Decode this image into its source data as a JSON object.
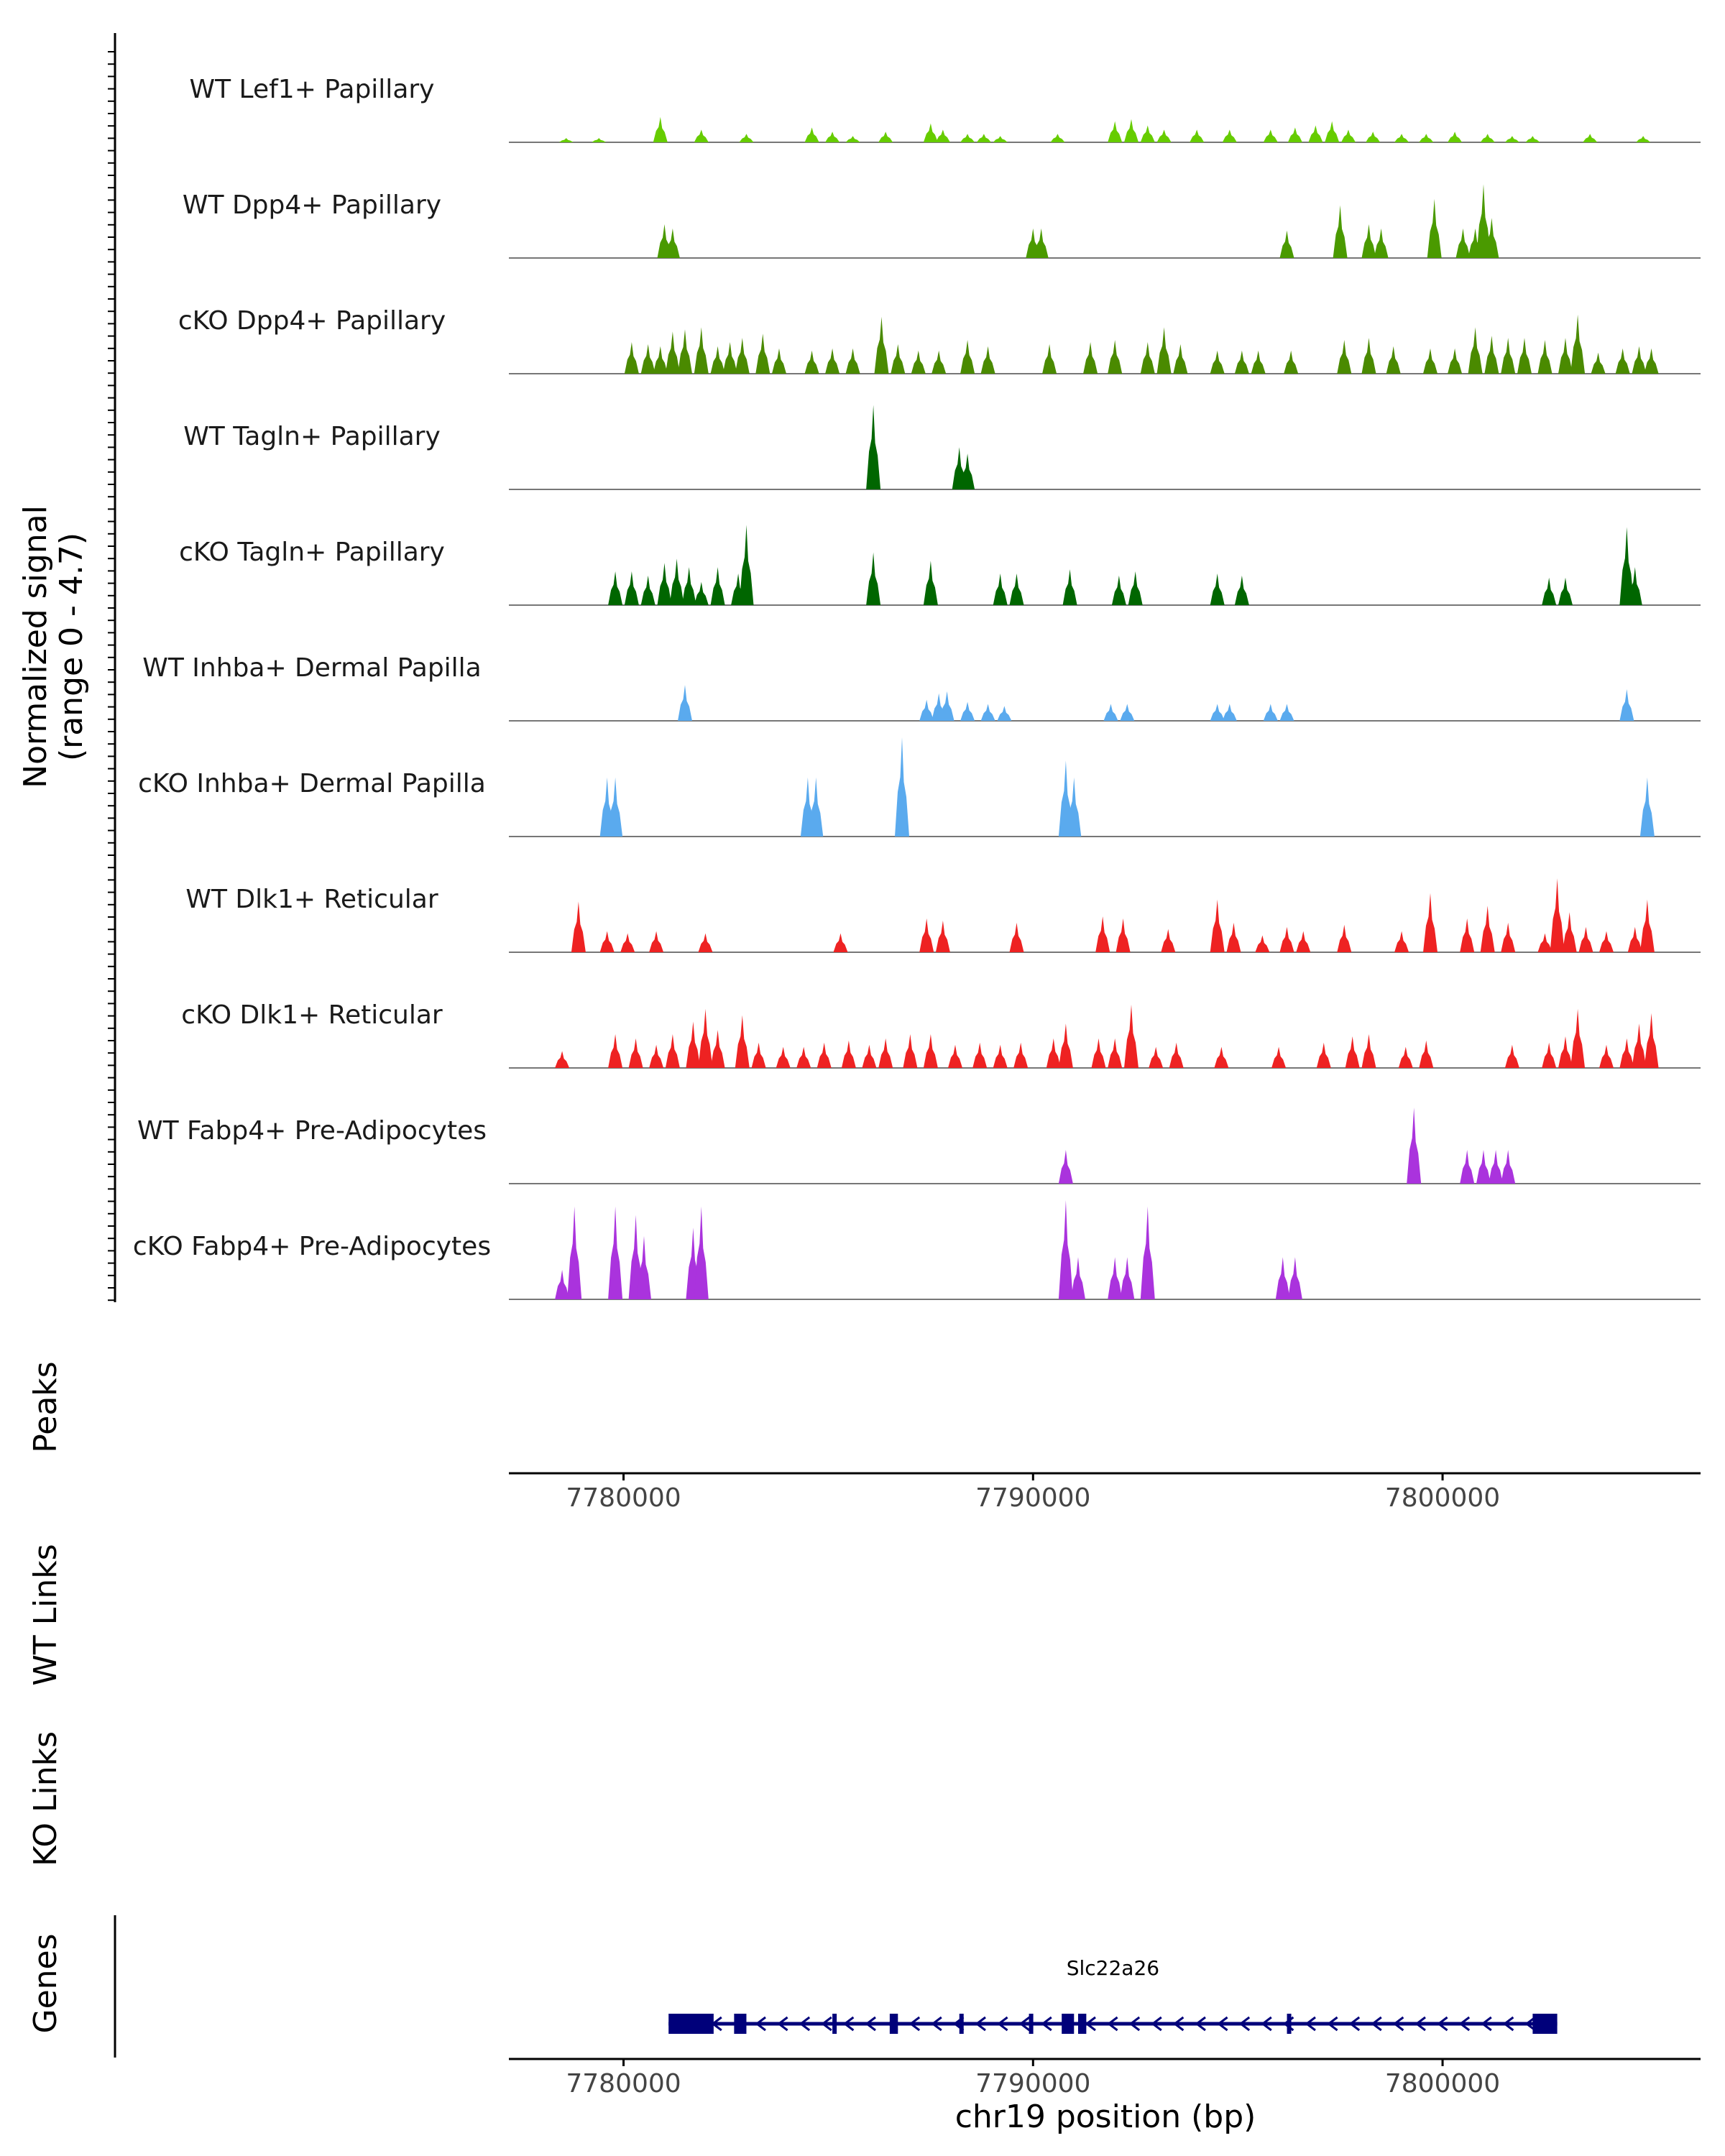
{
  "chart_data": {
    "type": "area",
    "chromosome": "chr19",
    "xlim": [
      7777200,
      7806300
    ],
    "signal_axis_label": [
      "Normalized signal",
      "(range 0 - 4.7)"
    ],
    "signal_range": [
      0,
      4.7
    ],
    "x_ticks": [
      {
        "value": 7780000,
        "label": "7780000"
      },
      {
        "value": 7790000,
        "label": "7790000"
      },
      {
        "value": 7800000,
        "label": "7800000"
      }
    ],
    "xlabel": "chr19 position (bp)",
    "tracks": [
      {
        "name": "WT Lef1+ Papillary",
        "color": "#66cc00",
        "peaks": [
          [
            7778600,
            0.2
          ],
          [
            7779400,
            0.2
          ],
          [
            7780900,
            1.2
          ],
          [
            7781900,
            0.6
          ],
          [
            7783000,
            0.4
          ],
          [
            7784600,
            0.7
          ],
          [
            7785100,
            0.5
          ],
          [
            7785600,
            0.3
          ],
          [
            7786400,
            0.5
          ],
          [
            7787500,
            0.9
          ],
          [
            7787800,
            0.6
          ],
          [
            7788400,
            0.4
          ],
          [
            7788800,
            0.4
          ],
          [
            7789200,
            0.3
          ],
          [
            7790600,
            0.4
          ],
          [
            7792000,
            1.0
          ],
          [
            7792400,
            1.1
          ],
          [
            7792800,
            0.8
          ],
          [
            7793200,
            0.6
          ],
          [
            7794000,
            0.6
          ],
          [
            7794800,
            0.6
          ],
          [
            7795800,
            0.6
          ],
          [
            7796400,
            0.7
          ],
          [
            7796900,
            0.8
          ],
          [
            7797300,
            1.0
          ],
          [
            7797700,
            0.6
          ],
          [
            7798300,
            0.5
          ],
          [
            7799000,
            0.4
          ],
          [
            7799600,
            0.4
          ],
          [
            7800300,
            0.5
          ],
          [
            7801100,
            0.4
          ],
          [
            7801700,
            0.3
          ],
          [
            7802200,
            0.3
          ],
          [
            7803600,
            0.4
          ],
          [
            7804900,
            0.3
          ]
        ]
      },
      {
        "name": "WT Dpp4+ Papillary",
        "color": "#4a9a00",
        "peaks": [
          [
            7781000,
            1.6
          ],
          [
            7781200,
            1.4
          ],
          [
            7790000,
            1.4
          ],
          [
            7790200,
            1.4
          ],
          [
            7796200,
            1.3
          ],
          [
            7797500,
            2.5
          ],
          [
            7798200,
            1.6
          ],
          [
            7798500,
            1.4
          ],
          [
            7799800,
            2.8
          ],
          [
            7800500,
            1.4
          ],
          [
            7800800,
            1.4
          ],
          [
            7801000,
            3.5
          ],
          [
            7801200,
            1.9
          ]
        ]
      },
      {
        "name": "cKO Dpp4+ Papillary",
        "color": "#4a8a00",
        "peaks": [
          [
            7780200,
            1.5
          ],
          [
            7780600,
            1.4
          ],
          [
            7780900,
            1.3
          ],
          [
            7781200,
            2.0
          ],
          [
            7781500,
            2.1
          ],
          [
            7781900,
            2.2
          ],
          [
            7782300,
            1.3
          ],
          [
            7782600,
            1.5
          ],
          [
            7782900,
            1.7
          ],
          [
            7783400,
            1.9
          ],
          [
            7783800,
            1.2
          ],
          [
            7784600,
            1.1
          ],
          [
            7785100,
            1.2
          ],
          [
            7785600,
            1.2
          ],
          [
            7786300,
            2.7
          ],
          [
            7786700,
            1.4
          ],
          [
            7787200,
            1.1
          ],
          [
            7787700,
            1.1
          ],
          [
            7788400,
            1.6
          ],
          [
            7788900,
            1.3
          ],
          [
            7790400,
            1.4
          ],
          [
            7791400,
            1.5
          ],
          [
            7792000,
            1.6
          ],
          [
            7792800,
            1.5
          ],
          [
            7793200,
            2.2
          ],
          [
            7793600,
            1.4
          ],
          [
            7794500,
            1.1
          ],
          [
            7795100,
            1.1
          ],
          [
            7795500,
            1.1
          ],
          [
            7796300,
            1.1
          ],
          [
            7797600,
            1.6
          ],
          [
            7798200,
            1.7
          ],
          [
            7798800,
            1.3
          ],
          [
            7799700,
            1.2
          ],
          [
            7800300,
            1.2
          ],
          [
            7800800,
            2.2
          ],
          [
            7801200,
            1.8
          ],
          [
            7801600,
            1.7
          ],
          [
            7802000,
            1.7
          ],
          [
            7802500,
            1.6
          ],
          [
            7803000,
            1.7
          ],
          [
            7803300,
            2.8
          ],
          [
            7803800,
            1.0
          ],
          [
            7804400,
            1.2
          ],
          [
            7804800,
            1.3
          ],
          [
            7805100,
            1.2
          ]
        ]
      },
      {
        "name": "WT Tagln+ Papillary",
        "color": "#006600",
        "peaks": [
          [
            7786100,
            4.0
          ],
          [
            7788200,
            2.0
          ],
          [
            7788400,
            1.7
          ]
        ]
      },
      {
        "name": "cKO Tagln+ Papillary",
        "color": "#006600",
        "peaks": [
          [
            7779800,
            1.6
          ],
          [
            7780200,
            1.6
          ],
          [
            7780600,
            1.4
          ],
          [
            7781000,
            2.0
          ],
          [
            7781300,
            2.2
          ],
          [
            7781600,
            1.8
          ],
          [
            7781900,
            1.1
          ],
          [
            7782300,
            1.8
          ],
          [
            7782800,
            1.5
          ],
          [
            7783000,
            3.8
          ],
          [
            7786100,
            2.5
          ],
          [
            7787500,
            2.1
          ],
          [
            7789200,
            1.5
          ],
          [
            7789600,
            1.5
          ],
          [
            7790900,
            1.7
          ],
          [
            7792100,
            1.4
          ],
          [
            7792500,
            1.6
          ],
          [
            7794500,
            1.5
          ],
          [
            7795100,
            1.4
          ],
          [
            7802600,
            1.3
          ],
          [
            7803000,
            1.3
          ],
          [
            7804500,
            3.7
          ],
          [
            7804700,
            1.8
          ]
        ]
      },
      {
        "name": "WT Inhba+ Dermal Papilla",
        "color": "#5aaaee",
        "peaks": [
          [
            7781500,
            1.7
          ],
          [
            7787400,
            1.0
          ],
          [
            7787700,
            1.3
          ],
          [
            7787900,
            1.4
          ],
          [
            7788400,
            0.9
          ],
          [
            7788900,
            0.8
          ],
          [
            7789300,
            0.7
          ],
          [
            7791900,
            0.8
          ],
          [
            7792300,
            0.8
          ],
          [
            7794500,
            0.8
          ],
          [
            7794800,
            0.8
          ],
          [
            7795800,
            0.8
          ],
          [
            7796200,
            0.8
          ],
          [
            7804500,
            1.5
          ]
        ]
      },
      {
        "name": "cKO Inhba+ Dermal Papilla",
        "color": "#5aaaee",
        "peaks": [
          [
            7779600,
            2.8
          ],
          [
            7779800,
            2.8
          ],
          [
            7784500,
            2.8
          ],
          [
            7784700,
            2.8
          ],
          [
            7786800,
            4.7
          ],
          [
            7790800,
            3.6
          ],
          [
            7791000,
            2.8
          ],
          [
            7805000,
            2.8
          ]
        ]
      },
      {
        "name": "WT Dlk1+ Reticular",
        "color": "#ee2222",
        "peaks": [
          [
            7778900,
            2.4
          ],
          [
            7779600,
            1.0
          ],
          [
            7780100,
            0.9
          ],
          [
            7780800,
            1.0
          ],
          [
            7782000,
            0.9
          ],
          [
            7785300,
            0.9
          ],
          [
            7787400,
            1.6
          ],
          [
            7787800,
            1.5
          ],
          [
            7789600,
            1.4
          ],
          [
            7791700,
            1.7
          ],
          [
            7792200,
            1.6
          ],
          [
            7793300,
            1.1
          ],
          [
            7794500,
            2.5
          ],
          [
            7794900,
            1.4
          ],
          [
            7795600,
            0.8
          ],
          [
            7796200,
            1.2
          ],
          [
            7796600,
            1.0
          ],
          [
            7797600,
            1.3
          ],
          [
            7799000,
            1.0
          ],
          [
            7799700,
            2.8
          ],
          [
            7800600,
            1.6
          ],
          [
            7801100,
            2.2
          ],
          [
            7801600,
            1.4
          ],
          [
            7802500,
            0.9
          ],
          [
            7802800,
            3.5
          ],
          [
            7803100,
            1.9
          ],
          [
            7803500,
            1.2
          ],
          [
            7804000,
            1.0
          ],
          [
            7804700,
            1.2
          ],
          [
            7805000,
            2.5
          ]
        ]
      },
      {
        "name": "cKO Dlk1+ Reticular",
        "color": "#ee2222",
        "peaks": [
          [
            7778500,
            0.8
          ],
          [
            7779800,
            1.6
          ],
          [
            7780300,
            1.4
          ],
          [
            7780800,
            1.1
          ],
          [
            7781200,
            1.6
          ],
          [
            7781700,
            2.2
          ],
          [
            7782000,
            2.8
          ],
          [
            7782300,
            1.8
          ],
          [
            7782900,
            2.5
          ],
          [
            7783300,
            1.2
          ],
          [
            7783900,
            1.0
          ],
          [
            7784400,
            1.0
          ],
          [
            7784900,
            1.2
          ],
          [
            7785500,
            1.3
          ],
          [
            7786000,
            1.1
          ],
          [
            7786400,
            1.4
          ],
          [
            7787000,
            1.6
          ],
          [
            7787500,
            1.6
          ],
          [
            7788100,
            1.1
          ],
          [
            7788700,
            1.2
          ],
          [
            7789200,
            1.1
          ],
          [
            7789700,
            1.2
          ],
          [
            7790500,
            1.4
          ],
          [
            7790800,
            2.1
          ],
          [
            7791600,
            1.4
          ],
          [
            7792000,
            1.4
          ],
          [
            7792400,
            3.0
          ],
          [
            7793000,
            1.0
          ],
          [
            7793500,
            1.2
          ],
          [
            7794600,
            1.0
          ],
          [
            7796000,
            1.0
          ],
          [
            7797100,
            1.2
          ],
          [
            7797800,
            1.5
          ],
          [
            7798200,
            1.6
          ],
          [
            7799100,
            1.0
          ],
          [
            7799600,
            1.3
          ],
          [
            7801700,
            1.1
          ],
          [
            7802600,
            1.2
          ],
          [
            7803000,
            1.5
          ],
          [
            7803300,
            2.8
          ],
          [
            7804000,
            1.1
          ],
          [
            7804500,
            1.4
          ],
          [
            7804800,
            2.1
          ],
          [
            7805100,
            2.6
          ]
        ]
      },
      {
        "name": "WT Fabp4+ Pre-Adipocytes",
        "color": "#aa33dd",
        "peaks": [
          [
            7790800,
            1.6
          ],
          [
            7799300,
            3.6
          ],
          [
            7800600,
            1.6
          ],
          [
            7801000,
            1.6
          ],
          [
            7801300,
            1.6
          ],
          [
            7801600,
            1.6
          ]
        ]
      },
      {
        "name": "cKO Fabp4+ Pre-Adipocytes",
        "color": "#aa33dd",
        "peaks": [
          [
            7778500,
            1.4
          ],
          [
            7778800,
            4.4
          ],
          [
            7779800,
            4.4
          ],
          [
            7780300,
            4.0
          ],
          [
            7780500,
            3.0
          ],
          [
            7781700,
            3.4
          ],
          [
            7781900,
            4.4
          ],
          [
            7790800,
            4.7
          ],
          [
            7791100,
            2.0
          ],
          [
            7792000,
            2.0
          ],
          [
            7792300,
            2.0
          ],
          [
            7792800,
            4.4
          ],
          [
            7796100,
            2.0
          ],
          [
            7796400,
            2.0
          ]
        ]
      }
    ],
    "empty_tracks": [
      "Peaks",
      "WT Links",
      "KO Links"
    ],
    "genes_track_label": "Genes",
    "gene": {
      "name": "Slc22a26",
      "start": 7781100,
      "end": 7802800,
      "strand": "-",
      "color": "#00007a",
      "exons": [
        [
          7781100,
          7782200
        ],
        [
          7782700,
          7783000
        ],
        [
          7785100,
          7785200
        ],
        [
          7786500,
          7786700
        ],
        [
          7788200,
          7788300
        ],
        [
          7789900,
          7790000
        ],
        [
          7790700,
          7791000
        ],
        [
          7791100,
          7791300
        ],
        [
          7796200,
          7796300
        ],
        [
          7802200,
          7802800
        ]
      ]
    }
  }
}
